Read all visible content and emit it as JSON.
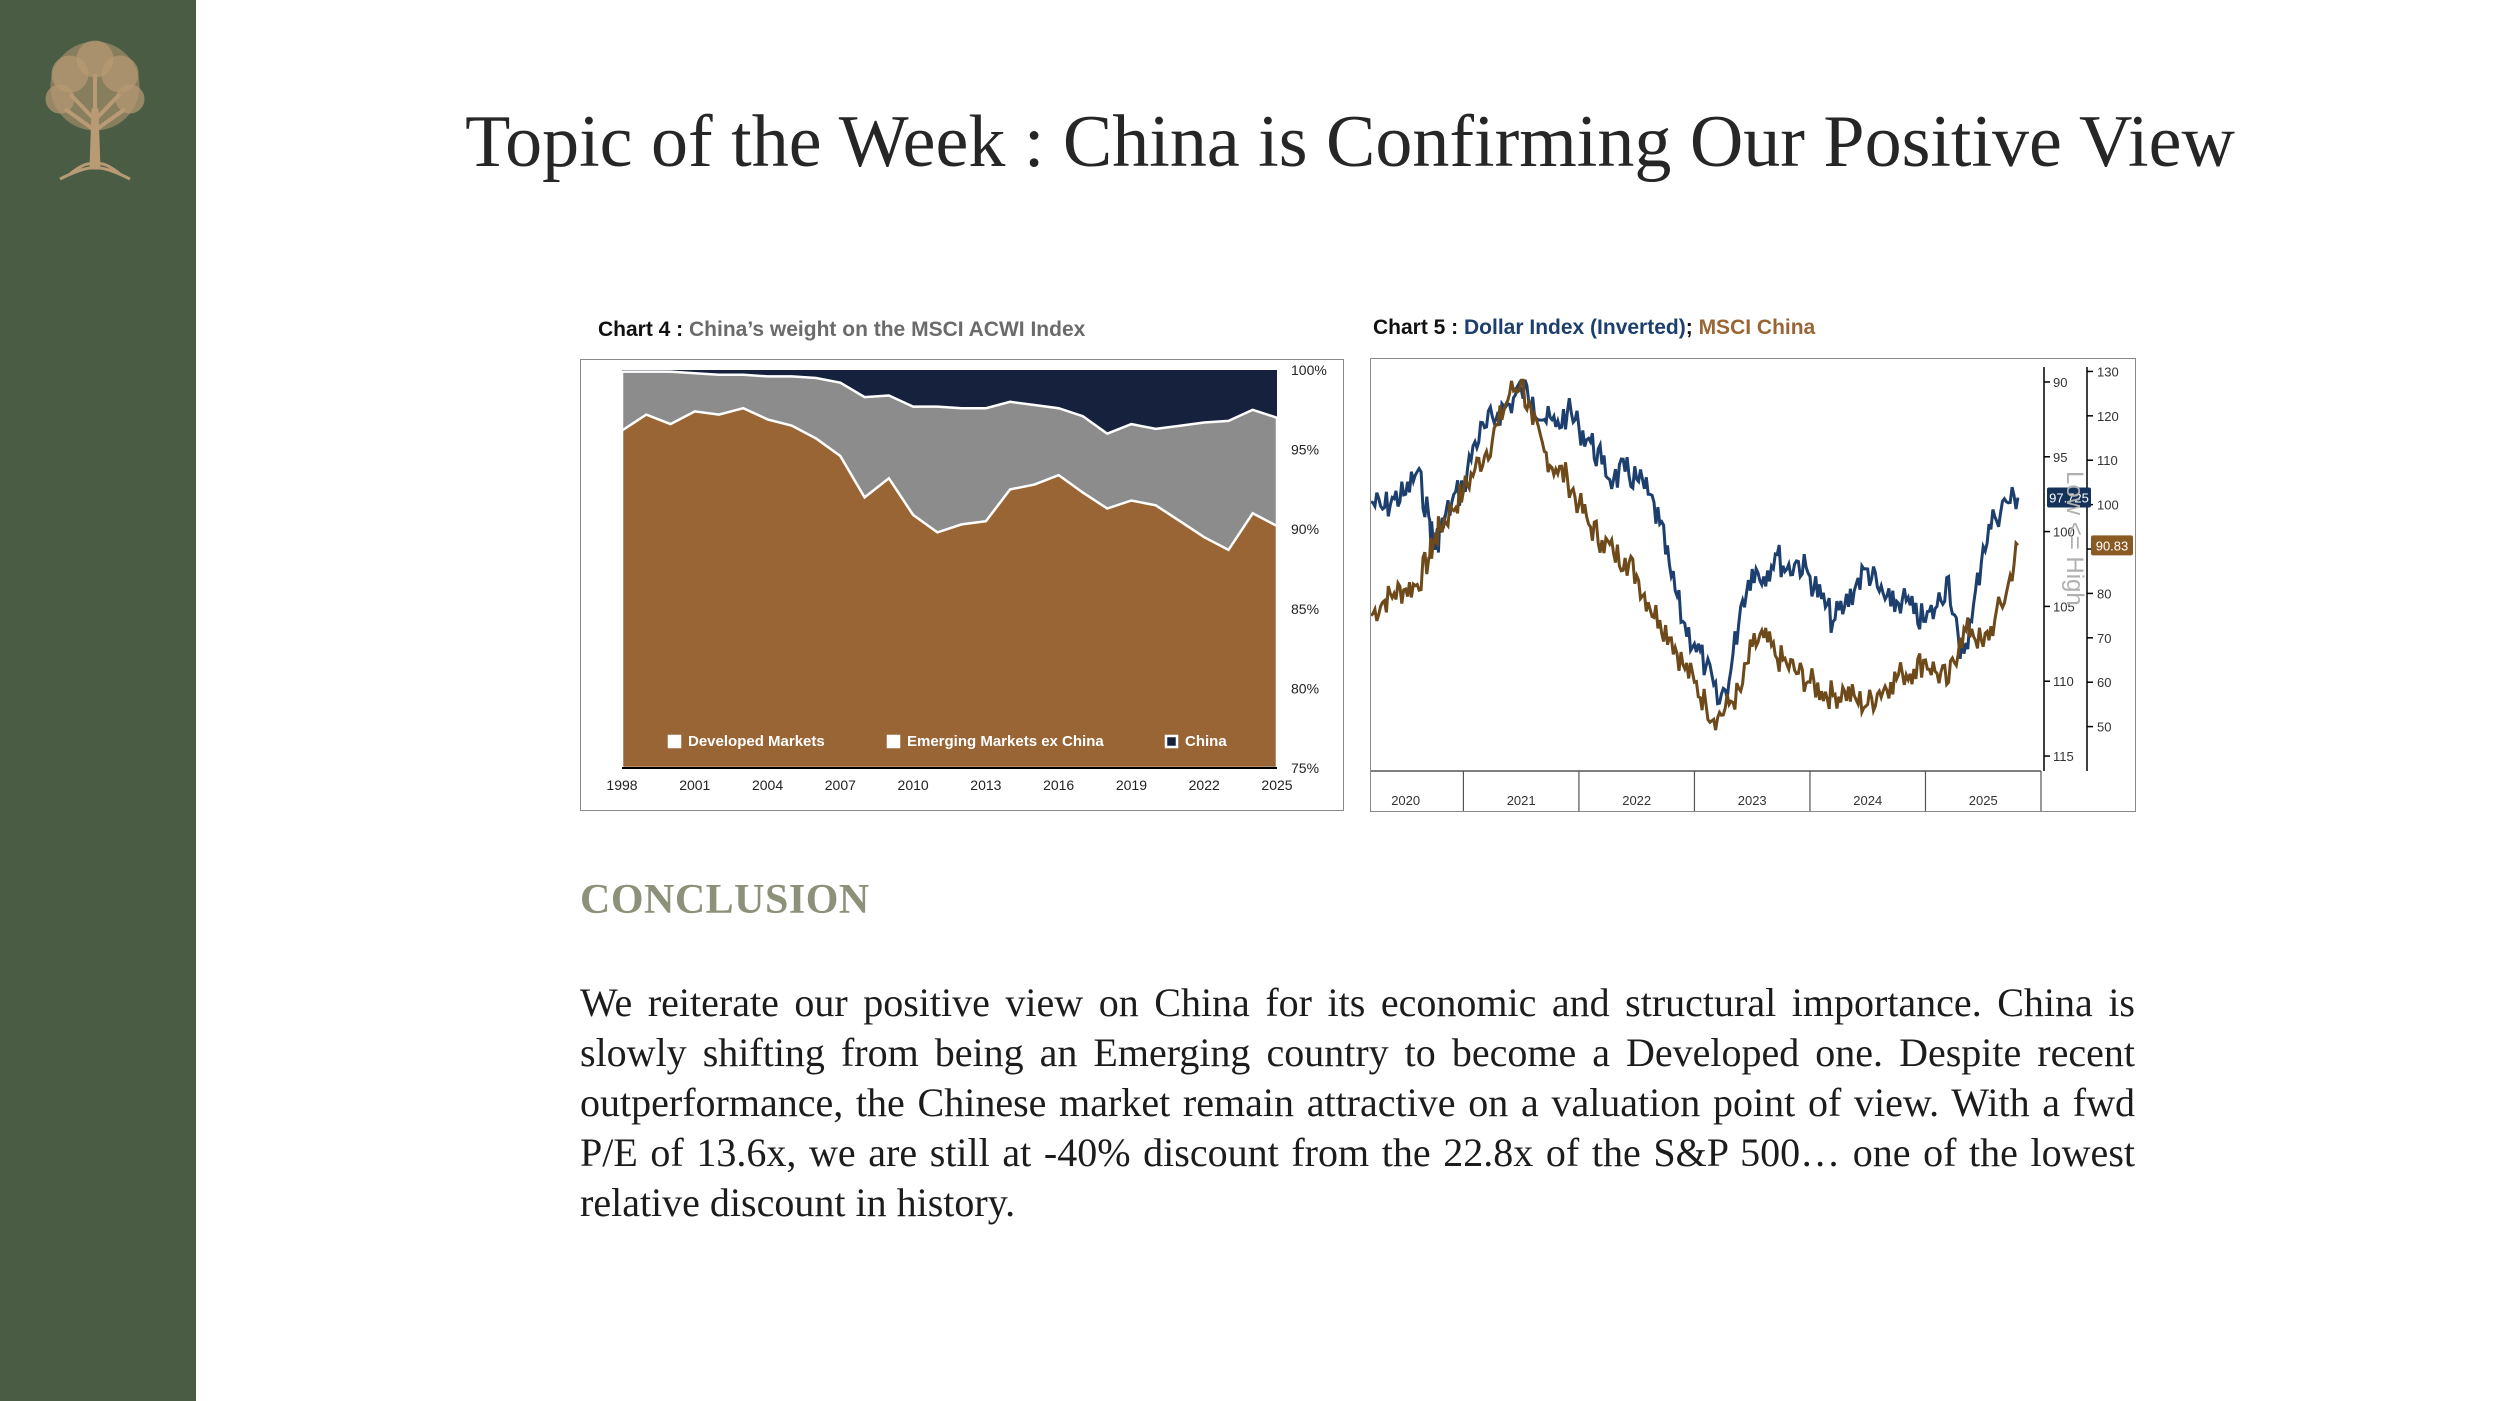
{
  "title": "Topic of  the Week : China is Confirming Our Positive View",
  "chart4": {
    "caption_prefix": "Chart 4 : ",
    "caption_title": "China’s weight on the MSCI ACWI Index"
  },
  "chart5": {
    "caption_prefix": "Chart 5 : ",
    "caption_series1": "Dollar Index (Inverted)",
    "caption_sep": "; ",
    "caption_series2": "MSCI China"
  },
  "conclusion_heading": "CONCLUSION",
  "conclusion_lines": [
    "We reiterate our positive view on China for its economic and structural importance. China is",
    "slowly shifting from being an Emerging country to become a Developed one. Despite recent",
    "outperformance, the Chinese market remain attractive on a valuation point of view. With a fwd",
    "P/E of 13.6x, we are still at -40% discount from the 22.8x of the S&P 500… one of the lowest",
    "relative discount in history."
  ],
  "colors": {
    "sidebar": "#4b5c45",
    "developed": "#9a6535",
    "emerging": "#8c8c8c",
    "china": "#16213d",
    "dollar": "#1d3f6e",
    "msci_china": "#6e4a1a",
    "conclusion": "#8c917a"
  },
  "chart_data": [
    {
      "type": "area",
      "title": "China’s weight on the MSCI ACWI Index",
      "stacked": true,
      "x": [
        1998,
        1999,
        2000,
        2001,
        2002,
        2003,
        2004,
        2005,
        2006,
        2007,
        2008,
        2009,
        2010,
        2011,
        2012,
        2013,
        2014,
        2015,
        2016,
        2017,
        2018,
        2019,
        2020,
        2021,
        2022,
        2023,
        2024,
        2025
      ],
      "xticks": [
        "1998",
        "2001",
        "2004",
        "2007",
        "2010",
        "2013",
        "2016",
        "2019",
        "2022",
        "2025"
      ],
      "yticks": [
        "100%",
        "95%",
        "90%",
        "85%",
        "80%",
        "75%"
      ],
      "ylim": [
        75,
        100
      ],
      "series": [
        {
          "name": "Developed Markets",
          "values": [
            96.2,
            97.2,
            96.6,
            97.4,
            97.2,
            97.6,
            96.9,
            96.5,
            95.7,
            94.6,
            92.0,
            93.2,
            90.9,
            89.8,
            90.3,
            90.5,
            92.5,
            92.8,
            93.4,
            92.3,
            91.3,
            91.8,
            91.5,
            90.5,
            89.5,
            88.7,
            91.0,
            90.2
          ]
        },
        {
          "name": "Emerging Markets ex China",
          "values": [
            99.9,
            99.9,
            99.9,
            99.8,
            99.7,
            99.7,
            99.6,
            99.6,
            99.5,
            99.2,
            98.3,
            98.4,
            97.7,
            97.7,
            97.6,
            97.6,
            98.0,
            97.8,
            97.6,
            97.1,
            96.0,
            96.6,
            96.3,
            96.5,
            96.7,
            96.8,
            97.5,
            97.0
          ]
        },
        {
          "name": "China",
          "values": [
            100,
            100,
            100,
            100,
            100,
            100,
            100,
            100,
            100,
            100,
            100,
            100,
            100,
            100,
            100,
            100,
            100,
            100,
            100,
            100,
            100,
            100,
            100,
            100,
            100,
            100,
            100,
            100
          ]
        }
      ],
      "legend": [
        "Developed Markets",
        "Emerging Markets ex China",
        "China"
      ],
      "legend_position": "bottom"
    },
    {
      "type": "line",
      "title": "Dollar Index (Inverted); MSCI China",
      "x": [
        2019.7,
        2019.8,
        2019.9,
        2020.0,
        2020.1,
        2020.2,
        2020.25,
        2020.3,
        2020.4,
        2020.5,
        2020.6,
        2020.7,
        2020.8,
        2020.9,
        2021.0,
        2021.1,
        2021.2,
        2021.3,
        2021.4,
        2021.5,
        2021.6,
        2021.7,
        2021.8,
        2021.9,
        2022.0,
        2022.1,
        2022.2,
        2022.3,
        2022.4,
        2022.5,
        2022.6,
        2022.7,
        2022.8,
        2022.9,
        2023.0,
        2023.1,
        2023.2,
        2023.3,
        2023.4,
        2023.5,
        2023.6,
        2023.7,
        2023.8,
        2023.9,
        2024.0,
        2024.1,
        2024.2,
        2024.3,
        2024.4,
        2024.5,
        2024.6,
        2024.7,
        2024.8,
        2024.9,
        2025.0,
        2025.1,
        2025.2,
        2025.3
      ],
      "xticks": [
        "2020",
        "2021",
        "2022",
        "2023",
        "2024",
        "2025"
      ],
      "series": [
        {
          "name": "Dollar Index (Inverted)",
          "axis": "left-inverted",
          "ylim": [
            116,
            89
          ],
          "yticks": [
            90,
            95,
            100,
            105,
            110,
            115
          ],
          "last_label": "97.725",
          "values": [
            98.0,
            98.5,
            97.8,
            97.5,
            96.0,
            99.0,
            101.0,
            100.0,
            98.0,
            97.0,
            94.0,
            93.0,
            92.0,
            91.5,
            90.5,
            91.0,
            92.5,
            93.0,
            92.0,
            93.0,
            94.0,
            95.5,
            96.5,
            96.0,
            96.5,
            97.5,
            99.5,
            103.0,
            106.0,
            107.5,
            109.0,
            111.5,
            110.0,
            105.0,
            102.5,
            103.0,
            101.5,
            102.5,
            102.0,
            103.0,
            104.5,
            106.0,
            105.0,
            103.5,
            102.5,
            104.0,
            105.0,
            104.5,
            105.5,
            106.0,
            105.0,
            103.0,
            108.5,
            106.0,
            101.0,
            99.0,
            98.0,
            97.725
          ]
        },
        {
          "name": "MSCI China",
          "axis": "right",
          "ylim": [
            40,
            131
          ],
          "yticks": [
            50,
            60,
            70,
            80,
            90,
            100,
            110,
            120,
            130
          ],
          "last_label": "90.83",
          "values": [
            75,
            78,
            80,
            81,
            82,
            88,
            92,
            95,
            99,
            103,
            108,
            112,
            118,
            125,
            128,
            118,
            112,
            108,
            106,
            100,
            95,
            92,
            89,
            88,
            84,
            78,
            74,
            70,
            64,
            60,
            55,
            52,
            55,
            58,
            68,
            70,
            66,
            64,
            62,
            60,
            58,
            57,
            58,
            56,
            55,
            58,
            60,
            62,
            63,
            65,
            62,
            60,
            70,
            72,
            68,
            74,
            80,
            90.83
          ]
        }
      ],
      "annotation": "Low <= High"
    }
  ]
}
